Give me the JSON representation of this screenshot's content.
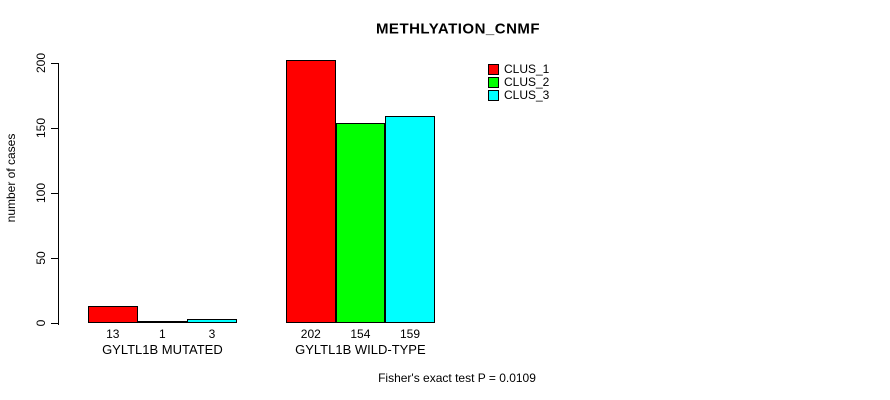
{
  "chart_data": {
    "type": "bar",
    "title": "METHLYATION_CNMF",
    "xlabel": "",
    "ylabel": "number of cases",
    "categories": [
      "GYLTL1B MUTATED",
      "GYLTL1B WILD-TYPE"
    ],
    "series": [
      {
        "name": "CLUS_1",
        "color": "#ff0000",
        "values": [
          13,
          202
        ]
      },
      {
        "name": "CLUS_2",
        "color": "#00ff00",
        "values": [
          1,
          154
        ]
      },
      {
        "name": "CLUS_3",
        "color": "#00ffff",
        "values": [
          3,
          159
        ]
      }
    ],
    "yticks": [
      0,
      50,
      100,
      150,
      200
    ],
    "ylim": [
      0,
      200
    ],
    "grid": false,
    "legend_position": "top-right",
    "bar_labels_shown": true
  },
  "annotations": {
    "footer": "Fisher's exact test P = 0.0109"
  },
  "colors": {
    "background": "#ffffff",
    "axis": "#000000",
    "bar_border": "#000000"
  }
}
